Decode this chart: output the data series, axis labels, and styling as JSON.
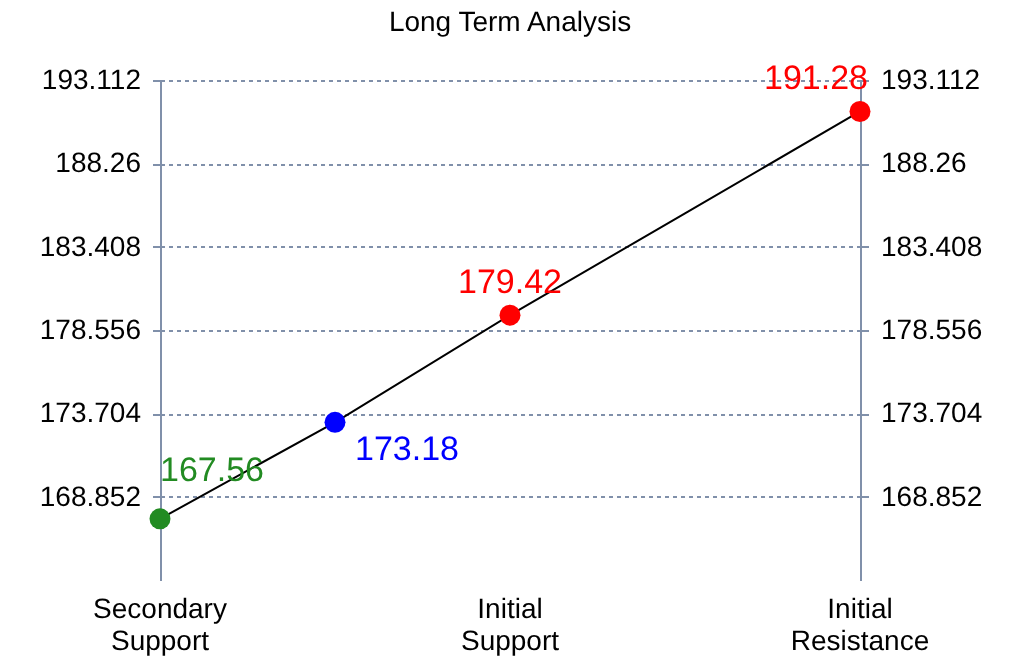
{
  "chart_data": {
    "type": "line",
    "title": "Long Term Analysis",
    "categories": [
      "Secondary Support",
      null,
      "Initial Support",
      null,
      "Initial Resistance"
    ],
    "ylim": [
      164,
      193.112
    ],
    "yticks": [
      168.852,
      173.704,
      178.556,
      183.408,
      188.26,
      193.112
    ],
    "y2lim": [
      164,
      193.112
    ],
    "y2ticks": [
      168.852,
      173.704,
      178.556,
      183.408,
      188.26,
      193.112
    ],
    "series": [
      {
        "type": "line",
        "color": "#000000",
        "values": [
          167.56,
          173.18,
          179.42,
          185.35,
          191.28
        ],
        "axis": "y2",
        "marker": "none"
      },
      {
        "type": "scatter",
        "colors": [
          "#228b22",
          "#0000ff",
          "#ff0000",
          null,
          "#ff0000"
        ],
        "values": [
          167.56,
          173.18,
          179.42,
          null,
          191.28
        ],
        "value_labels": [
          "167.56",
          "173.18",
          "179.42",
          null,
          "191.28"
        ],
        "marker": "circle"
      }
    ],
    "grid": true
  }
}
